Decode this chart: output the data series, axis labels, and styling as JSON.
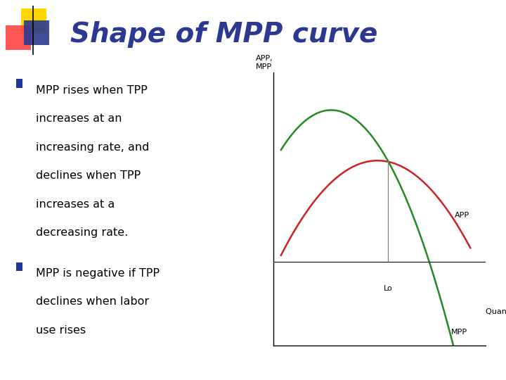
{
  "title": "Shape of MPP curve",
  "title_color": "#2B3990",
  "title_fontsize": 28,
  "background_color": "#FFFFFF",
  "bullet1_lines": [
    "MPP rises when TPP",
    "increases at an",
    "increasing rate, and",
    "declines when TPP",
    "increases at a",
    "decreasing rate."
  ],
  "bullet2_lines": [
    "MPP is negative if TPP",
    "declines when labor",
    "use rises"
  ],
  "bullet_color": "#1F3799",
  "text_color": "#000000",
  "text_fontsize": 11.5,
  "graph_ylabel": "APP,\nMPP",
  "graph_xlabel": "Quantity of labor",
  "graph_lo_label": "Lo",
  "app_color": "#CC2222",
  "mpp_color": "#228B22",
  "app_label": "APP",
  "mpp_label": "MPP",
  "separator_color": "#BBBBBB",
  "logo_yellow": "#FFD700",
  "logo_red": "#FF4444",
  "logo_blue": "#2B3990"
}
